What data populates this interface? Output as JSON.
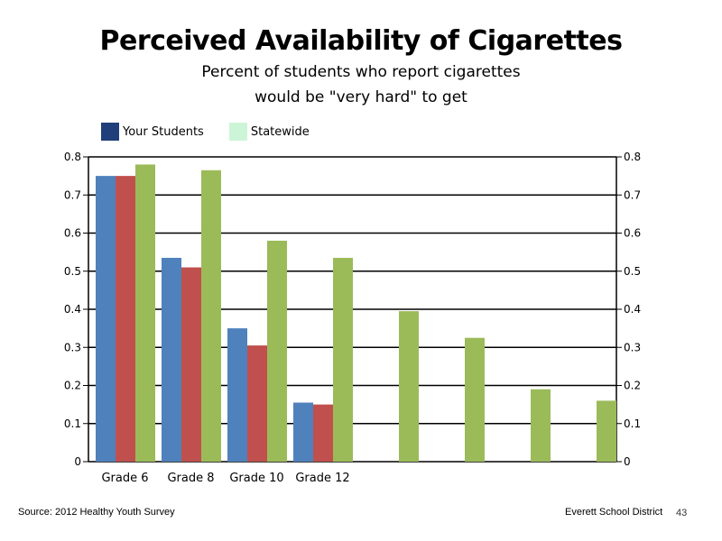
{
  "chart_data": {
    "type": "bar",
    "title": "Perceived Availability of Cigarettes",
    "subtitle_lines": [
      "Percent of students who report cigarettes",
      "would be \"very hard\" to get"
    ],
    "legend": [
      {
        "name": "Your Students",
        "color": "#1f3f7a"
      },
      {
        "name": "Statewide",
        "color": "#ccf5d8"
      }
    ],
    "categories": [
      "Grade 6",
      "Grade 8",
      "Grade 10",
      "Grade 12"
    ],
    "series": [
      {
        "color": "#4f81bd",
        "values": [
          0.75,
          0.535,
          0.35,
          0.155
        ]
      },
      {
        "color": "#c0504d",
        "values": [
          0.75,
          0.51,
          0.305,
          0.15
        ]
      },
      {
        "color": "#9bbb59",
        "values": [
          0.78,
          0.765,
          0.58,
          0.535
        ]
      }
    ],
    "extra_bars": {
      "color": "#9bbb59",
      "values": [
        0.395,
        0.325,
        0.19,
        0.16
      ]
    },
    "ylim": [
      0,
      0.8
    ],
    "yticks": [
      "0",
      "0.1",
      "0.2",
      "0.3",
      "0.4",
      "0.5",
      "0.6",
      "0.7",
      "0.8"
    ],
    "grid": true
  },
  "footer": {
    "source": "Source: 2012 Healthy Youth Survey",
    "org": "Everett School District",
    "page": "43"
  }
}
